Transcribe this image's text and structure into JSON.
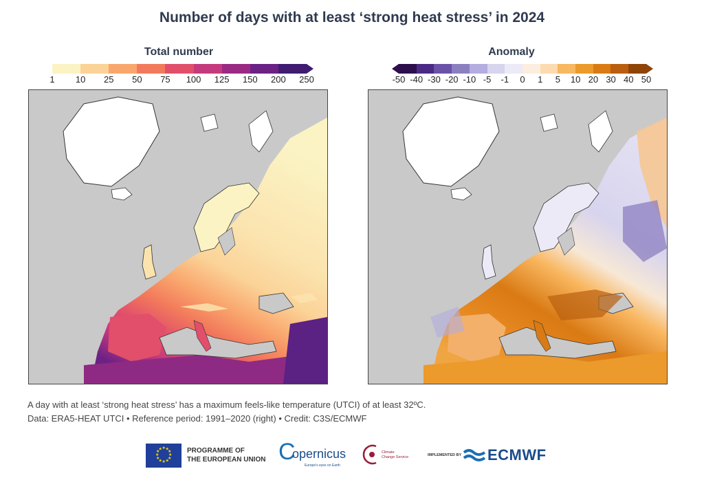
{
  "title": "Number of days with at least ‘strong heat stress’ in 2024",
  "left_map": {
    "legend_title": "Total number",
    "ticks": [
      "1",
      "10",
      "25",
      "50",
      "75",
      "100",
      "125",
      "150",
      "200",
      "250"
    ],
    "colors": [
      "#fbf3c4",
      "#fbd398",
      "#f9a66d",
      "#f27a5b",
      "#e14f6b",
      "#c53a7c",
      "#9b2a84",
      "#6c2185",
      "#3f1c72"
    ]
  },
  "right_map": {
    "legend_title": "Anomaly",
    "ticks": [
      "-50",
      "-40",
      "-30",
      "-20",
      "-10",
      "-5",
      "-1",
      "0",
      "1",
      "5",
      "10",
      "20",
      "30",
      "40",
      "50"
    ],
    "colors": [
      "#2d0f4e",
      "#4b2a85",
      "#6a52a8",
      "#8c7fc0",
      "#b3ade0",
      "#d7d4ee",
      "#eceaf6",
      "#fbeede",
      "#fddbb0",
      "#f9b760",
      "#ec9a2b",
      "#d97a14",
      "#b95f0f",
      "#8e4507"
    ]
  },
  "caption": {
    "line1": "A day with at least ‘strong heat stress’ has a maximum feels-like temperature (UTCI) of at least 32ºC.",
    "line2": "Data: ERA5-HEAT UTCI • Reference period: 1991–2020 (right) • Credit: C3S/ECMWF"
  },
  "logos": {
    "eu_text_line1": "PROGRAMME OF",
    "eu_text_line2": "THE EUROPEAN UNION",
    "copernicus": "opernicus",
    "copernicus_c": "C",
    "copernicus_tag": "Europe's eyes on Earth",
    "c3s_line1": "Climate",
    "c3s_line2": "Change Service",
    "implemented_by": "IMPLEMENTED BY",
    "ecmwf": "ECMWF"
  }
}
